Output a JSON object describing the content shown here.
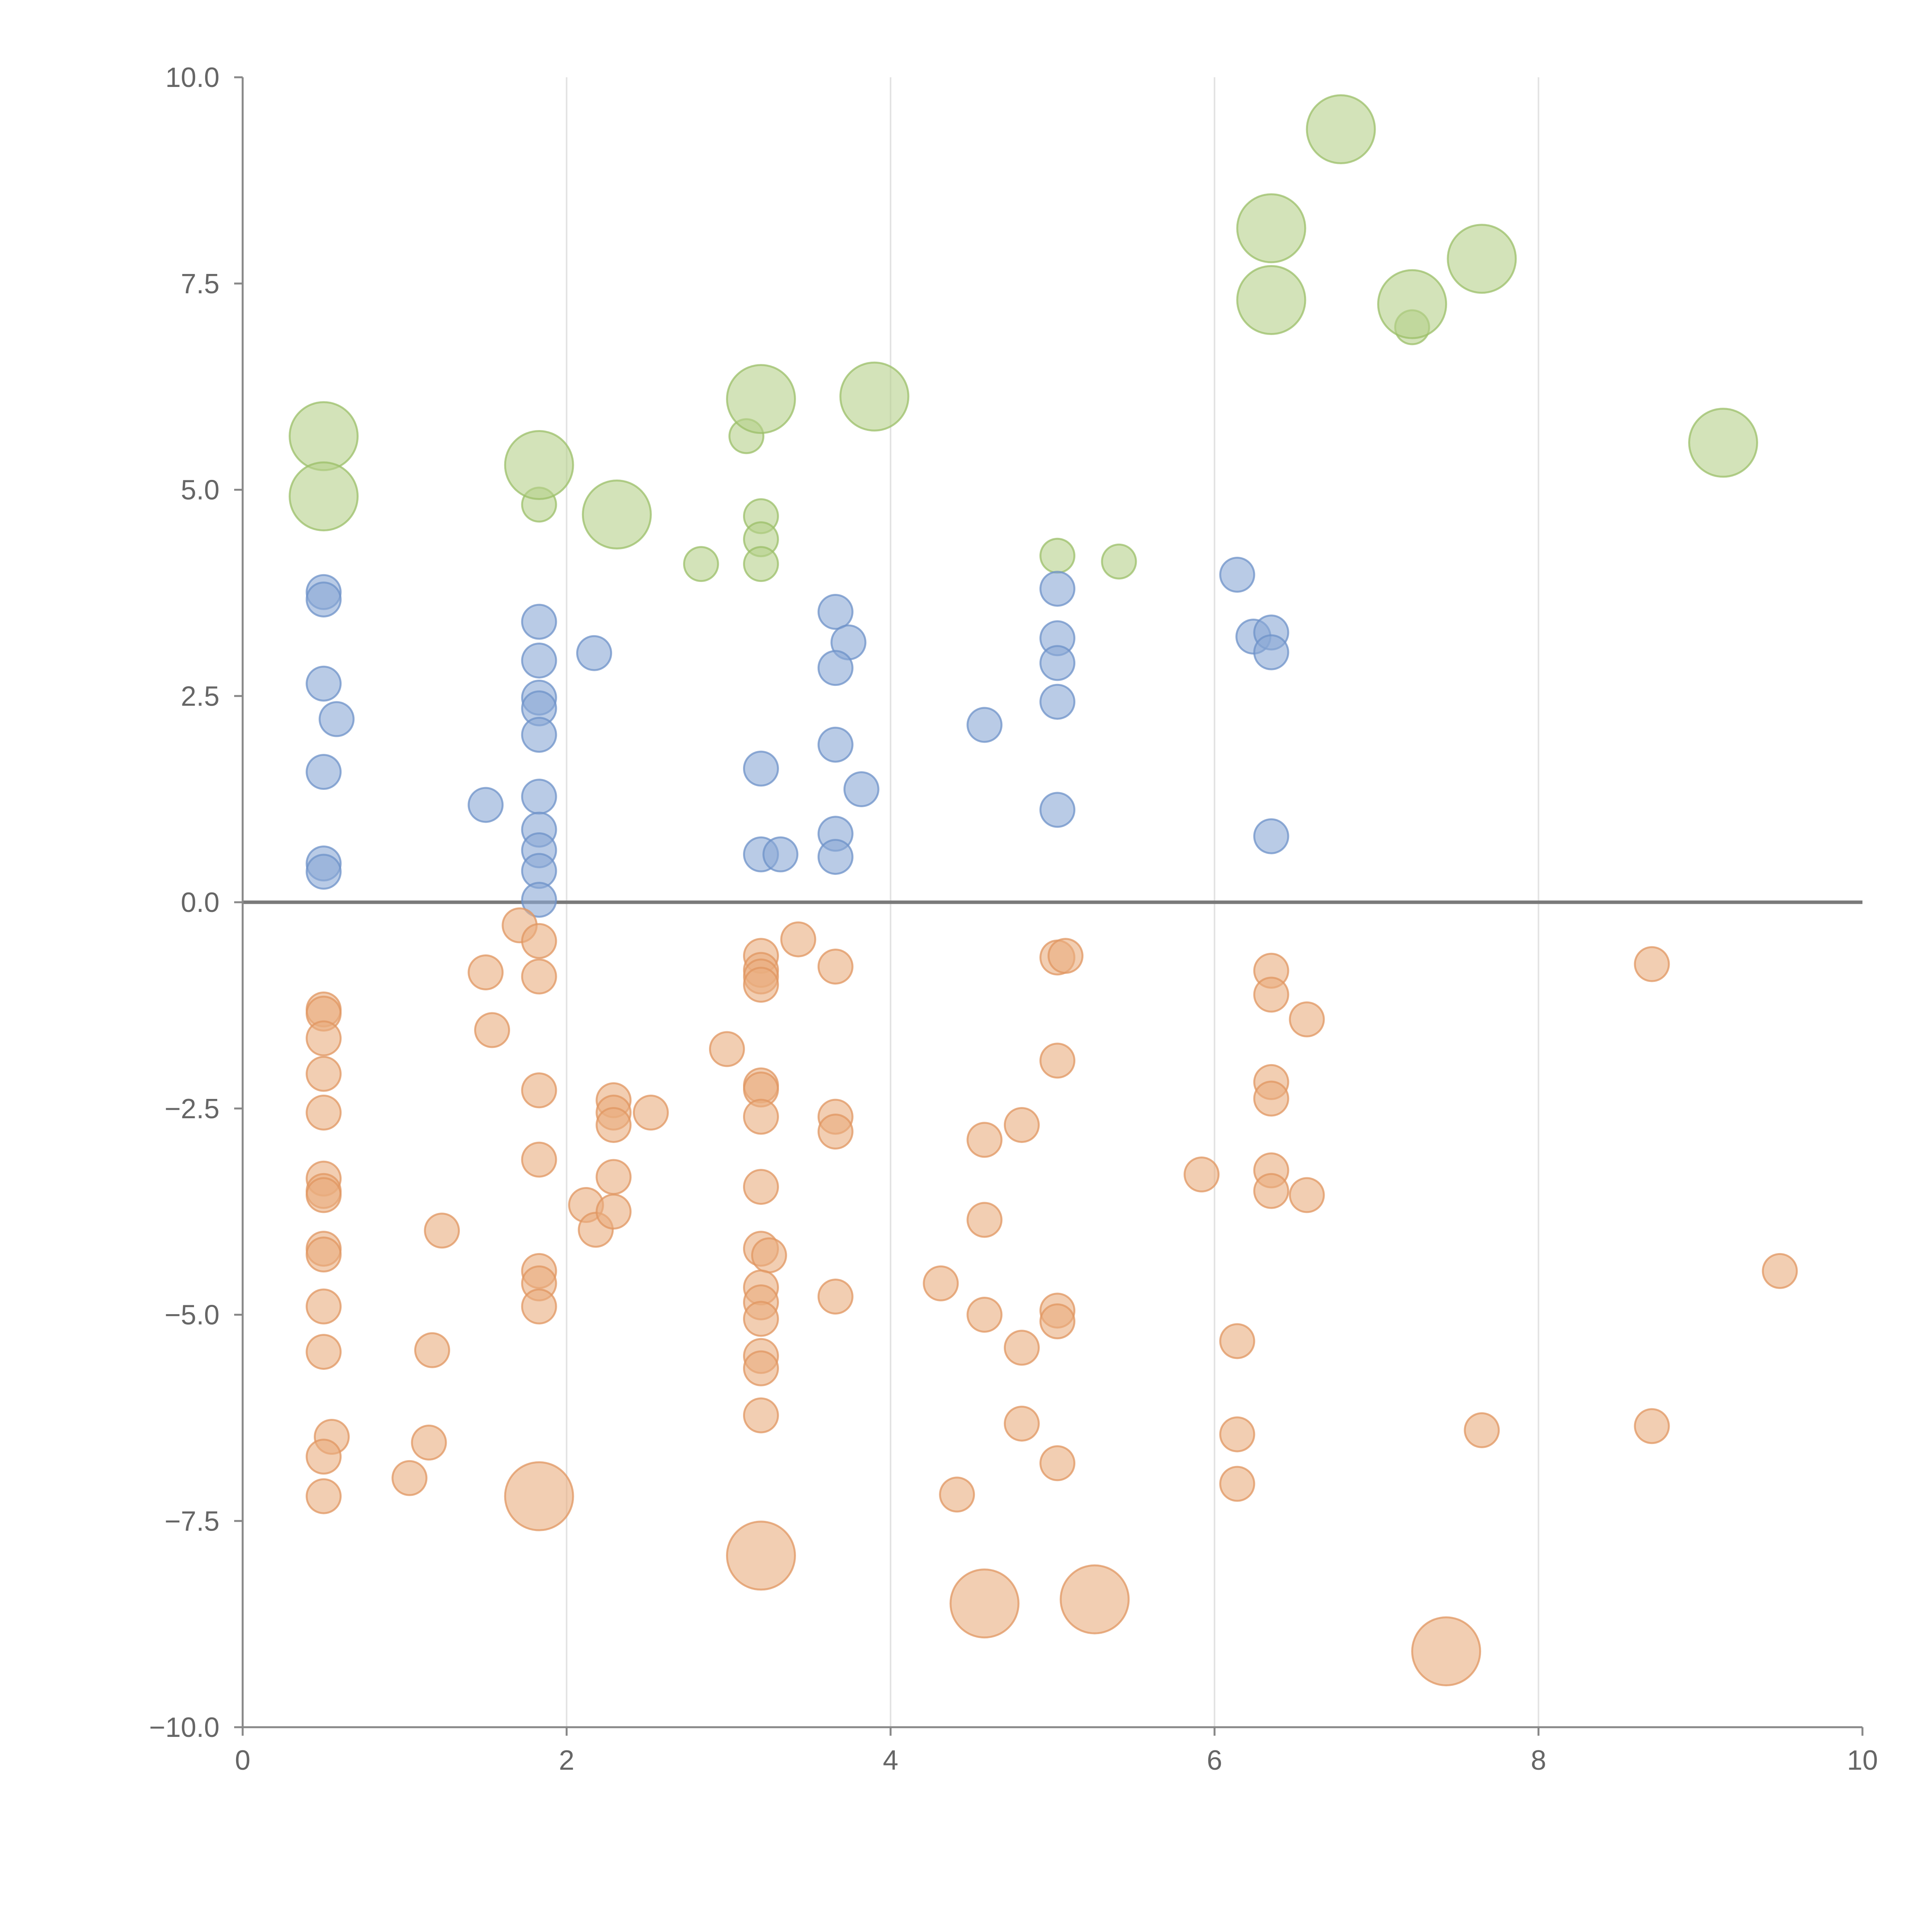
{
  "chart_data": {
    "type": "scatter",
    "title": "",
    "xlabel": "",
    "ylabel": "",
    "xlim": [
      0,
      10
    ],
    "ylim": [
      -10,
      10
    ],
    "xticks": [
      "0",
      "2",
      "4",
      "6",
      "8",
      "10"
    ],
    "yticks": [
      "10.0",
      "7.5",
      "5.0",
      "2.5",
      "0.0",
      "−2.5",
      "−5.0",
      "−7.5",
      "−10.0"
    ],
    "grid": "vertical",
    "legend": "none",
    "series": [
      {
        "name": "green",
        "color": "#b5d08a",
        "stroke": "#9bbf68",
        "points": [
          [
            0.5,
            5.65,
            1.6
          ],
          [
            0.5,
            4.92,
            1.6
          ],
          [
            1.83,
            5.3,
            1.6
          ],
          [
            1.83,
            4.82,
            0.8
          ],
          [
            2.31,
            4.7,
            1.6
          ],
          [
            2.83,
            4.1,
            0.8
          ],
          [
            3.11,
            5.65,
            0.8
          ],
          [
            3.2,
            6.1,
            1.6
          ],
          [
            3.2,
            4.68,
            0.8
          ],
          [
            3.2,
            4.4,
            0.8
          ],
          [
            3.2,
            4.1,
            0.8
          ],
          [
            3.9,
            6.13,
            1.6
          ],
          [
            5.03,
            4.2,
            0.8
          ],
          [
            5.41,
            4.13,
            0.8
          ],
          [
            6.35,
            8.17,
            1.6
          ],
          [
            6.35,
            7.3,
            1.6
          ],
          [
            6.78,
            9.37,
            1.6
          ],
          [
            7.22,
            7.25,
            1.6
          ],
          [
            7.22,
            6.97,
            0.8
          ],
          [
            7.65,
            7.8,
            1.6
          ],
          [
            9.14,
            5.57,
            1.6
          ]
        ]
      },
      {
        "name": "blue",
        "color": "#8aa9d6",
        "stroke": "#6e92c8",
        "points": [
          [
            0.5,
            3.76,
            0.8
          ],
          [
            0.5,
            3.67,
            0.8
          ],
          [
            0.5,
            2.65,
            0.8
          ],
          [
            0.58,
            2.22,
            0.8
          ],
          [
            0.5,
            1.58,
            0.8
          ],
          [
            0.5,
            0.47,
            0.8
          ],
          [
            0.5,
            0.37,
            0.8
          ],
          [
            1.5,
            1.18,
            0.8
          ],
          [
            1.83,
            3.4,
            0.8
          ],
          [
            1.83,
            2.93,
            0.8
          ],
          [
            1.83,
            2.48,
            0.8
          ],
          [
            1.83,
            2.35,
            0.8
          ],
          [
            1.83,
            2.03,
            0.8
          ],
          [
            1.83,
            1.28,
            0.8
          ],
          [
            1.83,
            0.88,
            0.8
          ],
          [
            1.83,
            0.63,
            0.8
          ],
          [
            1.83,
            0.38,
            0.8
          ],
          [
            1.83,
            0.03,
            0.8
          ],
          [
            2.17,
            3.02,
            0.8
          ],
          [
            3.2,
            1.62,
            0.8
          ],
          [
            3.2,
            0.58,
            0.8
          ],
          [
            3.32,
            0.58,
            0.8
          ],
          [
            3.66,
            3.52,
            0.8
          ],
          [
            3.74,
            3.15,
            0.8
          ],
          [
            3.66,
            2.84,
            0.8
          ],
          [
            3.66,
            1.91,
            0.8
          ],
          [
            3.82,
            1.37,
            0.8
          ],
          [
            3.66,
            0.83,
            0.8
          ],
          [
            3.66,
            0.55,
            0.8
          ],
          [
            4.58,
            2.15,
            0.8
          ],
          [
            5.03,
            3.8,
            0.8
          ],
          [
            5.03,
            3.2,
            0.8
          ],
          [
            5.03,
            2.9,
            0.8
          ],
          [
            5.03,
            2.43,
            0.8
          ],
          [
            5.03,
            1.12,
            0.8
          ],
          [
            6.14,
            3.97,
            0.8
          ],
          [
            6.24,
            3.22,
            0.8
          ],
          [
            6.35,
            3.27,
            0.8
          ],
          [
            6.35,
            3.03,
            0.8
          ],
          [
            6.35,
            0.8,
            0.8
          ]
        ]
      },
      {
        "name": "orange",
        "color": "#eaad7e",
        "stroke": "#e09560",
        "points": [
          [
            0.5,
            -1.3,
            0.8
          ],
          [
            0.5,
            -1.35,
            0.8
          ],
          [
            0.5,
            -1.65,
            0.8
          ],
          [
            0.5,
            -2.08,
            0.8
          ],
          [
            0.5,
            -2.55,
            0.8
          ],
          [
            0.5,
            -3.35,
            0.8
          ],
          [
            0.5,
            -3.5,
            0.8
          ],
          [
            0.5,
            -3.55,
            0.8
          ],
          [
            0.5,
            -4.2,
            0.8
          ],
          [
            0.5,
            -4.27,
            0.8
          ],
          [
            0.5,
            -4.9,
            0.8
          ],
          [
            0.5,
            -5.45,
            0.8
          ],
          [
            0.55,
            -6.48,
            0.8
          ],
          [
            0.5,
            -6.72,
            0.8
          ],
          [
            0.5,
            -7.2,
            0.8
          ],
          [
            1.03,
            -6.98,
            0.8
          ],
          [
            1.15,
            -6.55,
            0.8
          ],
          [
            1.23,
            -3.98,
            0.8
          ],
          [
            1.17,
            -5.43,
            0.8
          ],
          [
            1.5,
            -0.85,
            0.8
          ],
          [
            1.54,
            -1.55,
            0.8
          ],
          [
            1.71,
            -0.28,
            0.8
          ],
          [
            1.83,
            -0.47,
            0.8
          ],
          [
            1.83,
            -0.9,
            0.8
          ],
          [
            1.83,
            -2.28,
            0.8
          ],
          [
            1.83,
            -3.12,
            0.8
          ],
          [
            1.83,
            -4.47,
            0.8
          ],
          [
            1.83,
            -4.62,
            0.8
          ],
          [
            1.83,
            -4.9,
            0.8
          ],
          [
            1.83,
            -7.2,
            1.6
          ],
          [
            2.12,
            -3.67,
            0.8
          ],
          [
            2.18,
            -3.97,
            0.8
          ],
          [
            2.29,
            -2.4,
            0.8
          ],
          [
            2.29,
            -2.55,
            0.8
          ],
          [
            2.29,
            -2.7,
            0.8
          ],
          [
            2.29,
            -3.33,
            0.8
          ],
          [
            2.29,
            -3.75,
            0.8
          ],
          [
            2.52,
            -2.55,
            0.8
          ],
          [
            2.99,
            -1.78,
            0.8
          ],
          [
            3.2,
            -0.65,
            0.8
          ],
          [
            3.2,
            -0.82,
            0.8
          ],
          [
            3.2,
            -0.9,
            0.8
          ],
          [
            3.2,
            -1.0,
            0.8
          ],
          [
            3.2,
            -2.22,
            0.8
          ],
          [
            3.2,
            -2.27,
            0.8
          ],
          [
            3.2,
            -2.6,
            0.8
          ],
          [
            3.2,
            -3.45,
            0.8
          ],
          [
            3.2,
            -4.2,
            0.8
          ],
          [
            3.25,
            -4.28,
            0.8
          ],
          [
            3.2,
            -4.67,
            0.8
          ],
          [
            3.2,
            -4.85,
            0.8
          ],
          [
            3.2,
            -5.05,
            0.8
          ],
          [
            3.2,
            -5.5,
            0.8
          ],
          [
            3.2,
            -5.65,
            0.8
          ],
          [
            3.2,
            -6.22,
            0.8
          ],
          [
            3.2,
            -7.92,
            1.6
          ],
          [
            3.43,
            -0.45,
            0.8
          ],
          [
            3.66,
            -0.78,
            0.8
          ],
          [
            3.66,
            -2.6,
            0.8
          ],
          [
            3.66,
            -2.78,
            0.8
          ],
          [
            3.66,
            -4.78,
            0.8
          ],
          [
            4.31,
            -4.62,
            0.8
          ],
          [
            4.41,
            -7.18,
            0.8
          ],
          [
            4.58,
            -2.88,
            0.8
          ],
          [
            4.58,
            -3.85,
            0.8
          ],
          [
            4.58,
            -5.0,
            0.8
          ],
          [
            4.58,
            -8.5,
            1.6
          ],
          [
            4.81,
            -2.7,
            0.8
          ],
          [
            4.81,
            -5.4,
            0.8
          ],
          [
            4.81,
            -6.32,
            0.8
          ],
          [
            5.03,
            -0.67,
            0.8
          ],
          [
            5.08,
            -0.65,
            0.8
          ],
          [
            5.03,
            -1.92,
            0.8
          ],
          [
            5.03,
            -4.95,
            0.8
          ],
          [
            5.03,
            -5.08,
            0.8
          ],
          [
            5.03,
            -6.8,
            0.8
          ],
          [
            5.26,
            -8.45,
            1.6
          ],
          [
            5.92,
            -3.3,
            0.8
          ],
          [
            6.14,
            -5.32,
            0.8
          ],
          [
            6.14,
            -6.45,
            0.8
          ],
          [
            6.14,
            -7.05,
            0.8
          ],
          [
            6.35,
            -0.83,
            0.8
          ],
          [
            6.35,
            -1.12,
            0.8
          ],
          [
            6.35,
            -2.18,
            0.8
          ],
          [
            6.35,
            -2.38,
            0.8
          ],
          [
            6.35,
            -3.25,
            0.8
          ],
          [
            6.35,
            -3.5,
            0.8
          ],
          [
            6.57,
            -1.42,
            0.8
          ],
          [
            6.57,
            -3.55,
            0.8
          ],
          [
            7.43,
            -9.08,
            1.6
          ],
          [
            7.65,
            -6.4,
            0.8
          ],
          [
            8.7,
            -0.75,
            0.8
          ],
          [
            8.7,
            -6.35,
            0.8
          ],
          [
            9.49,
            -4.47,
            0.8
          ]
        ]
      }
    ]
  }
}
